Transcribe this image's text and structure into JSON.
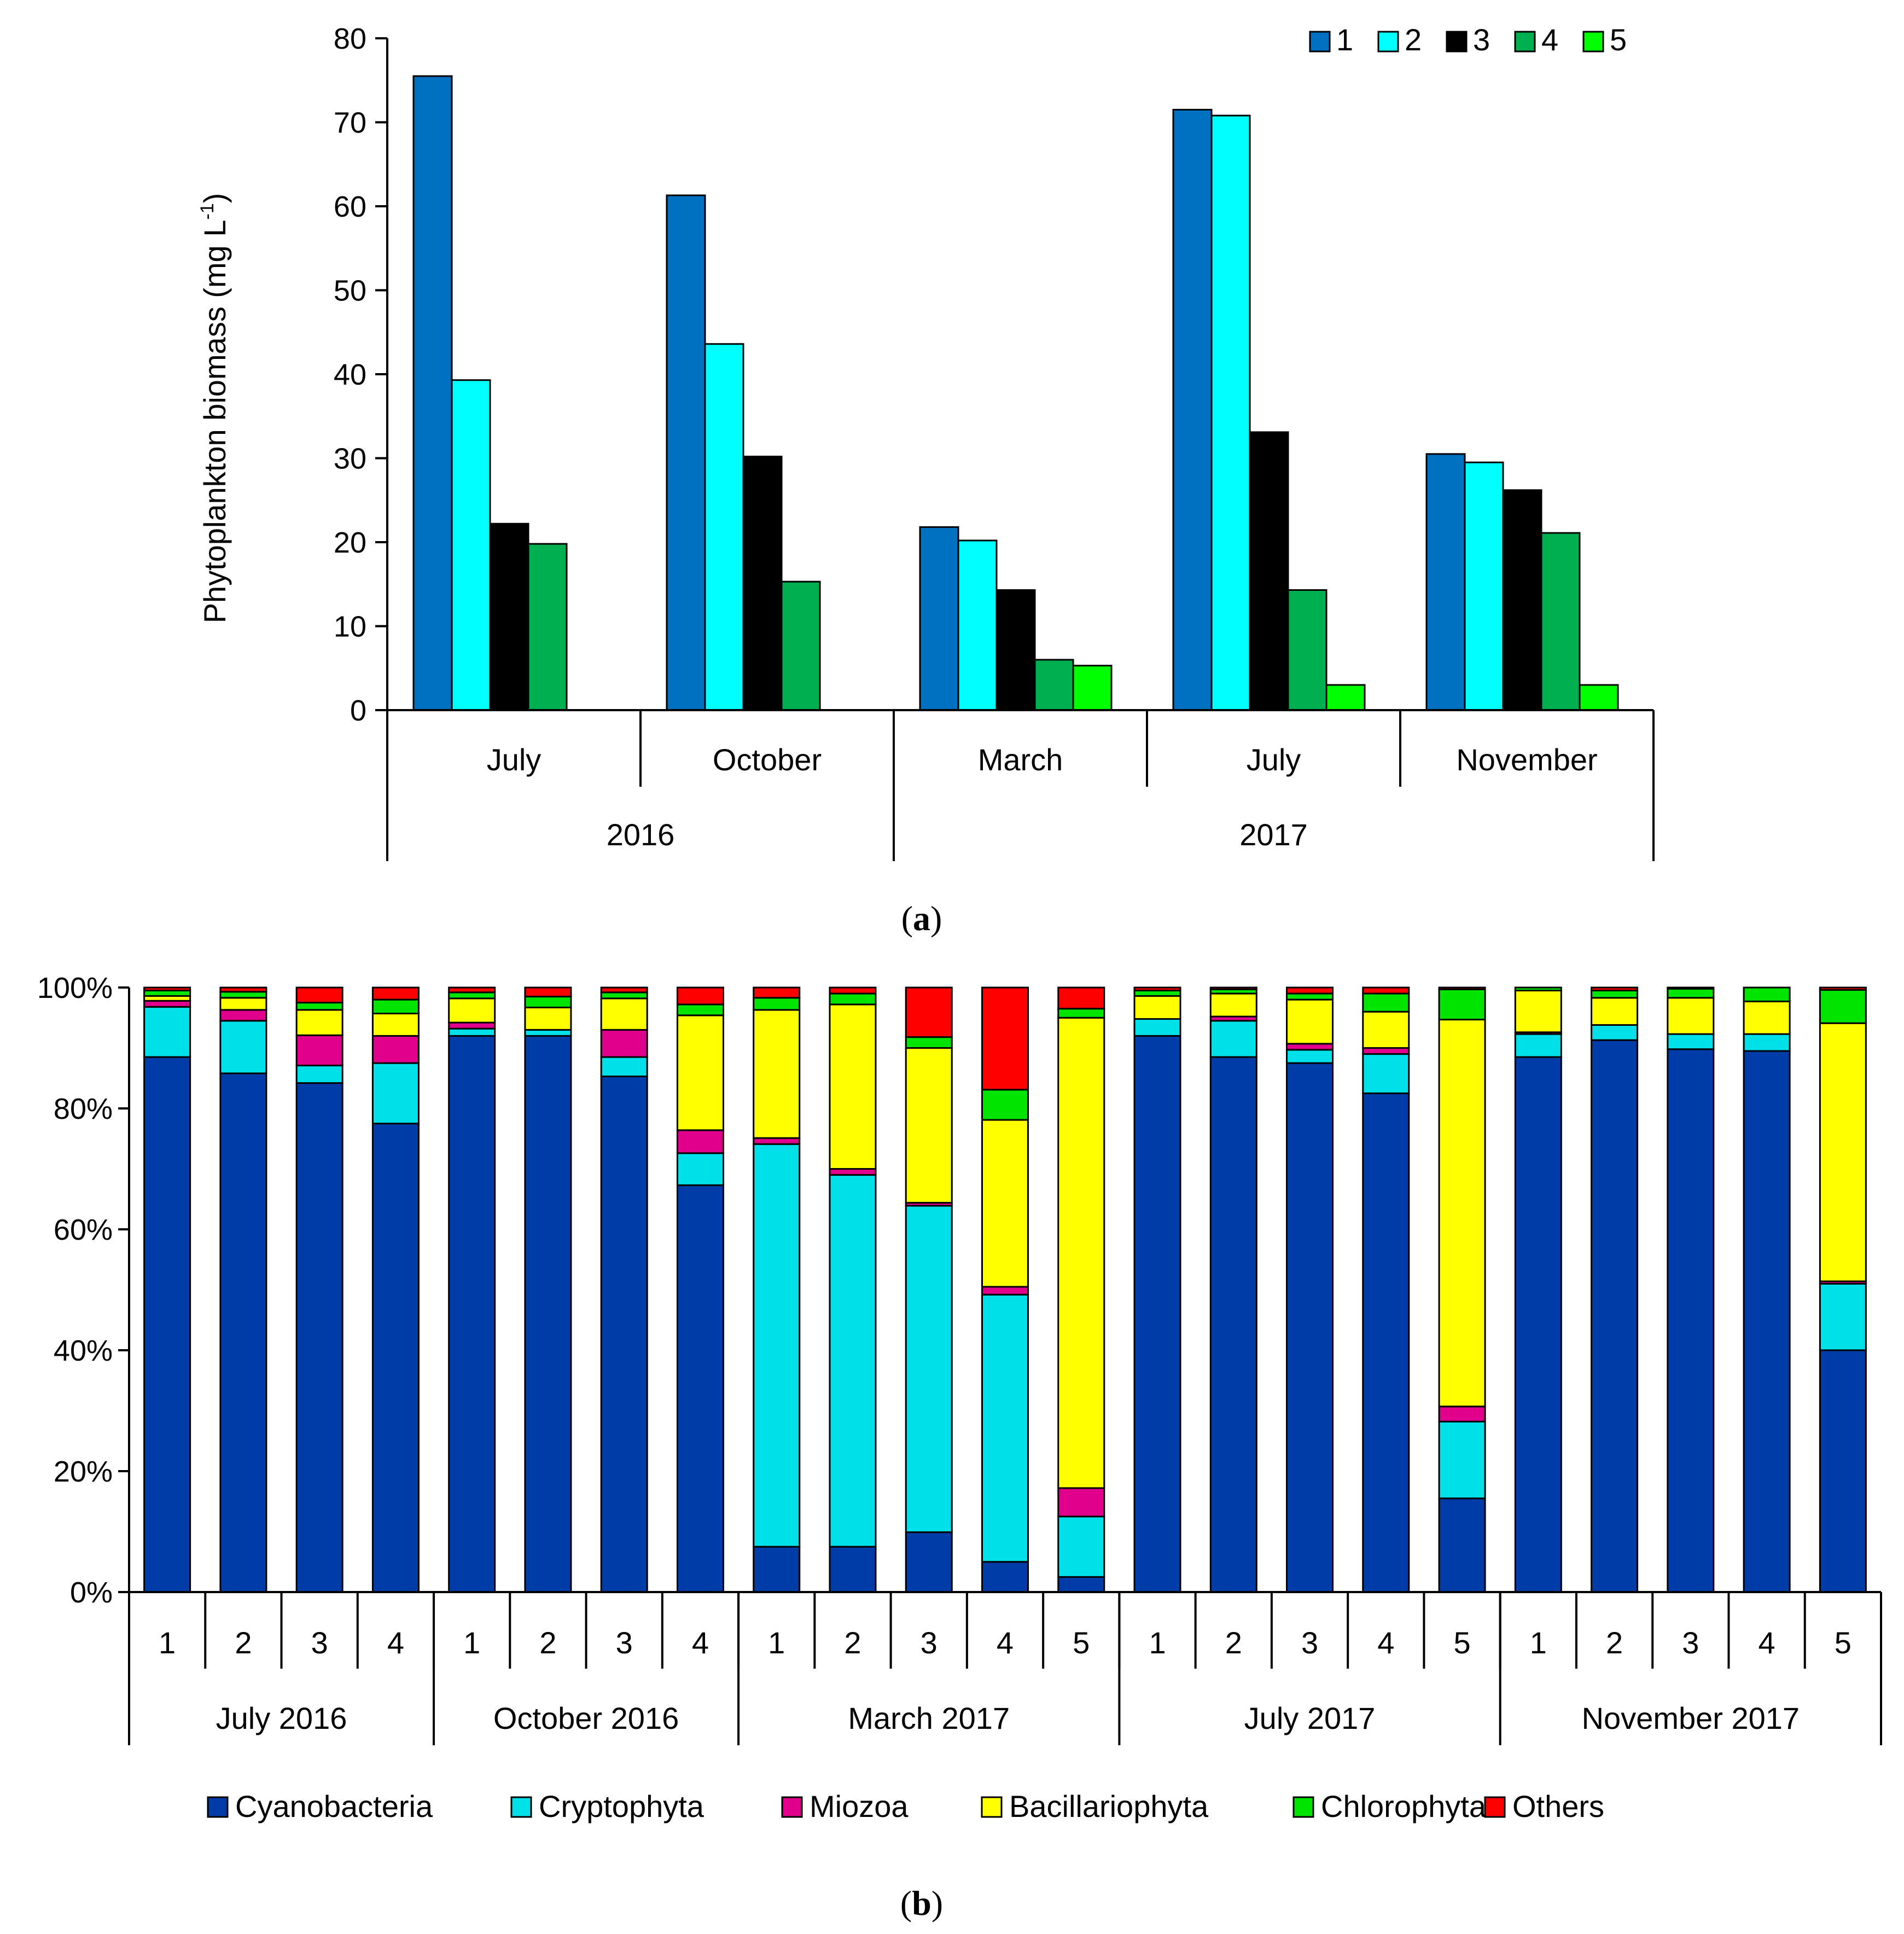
{
  "chart_data": [
    {
      "id": "a",
      "type": "bar",
      "caption": "a",
      "ylabel": "Phytoplankton biomass (mg L",
      "ylabel_sup": "-1",
      "ylabel_close": ")",
      "ylim": [
        0,
        80
      ],
      "yticks": [
        "0",
        "10",
        "20",
        "30",
        "40",
        "50",
        "60",
        "70",
        "80"
      ],
      "categories": [
        "July",
        "October",
        "March",
        "July",
        "November"
      ],
      "year_groups": [
        {
          "label": "2016",
          "span": 2
        },
        {
          "label": "2017",
          "span": 3
        }
      ],
      "series": [
        {
          "name": "1",
          "color": "#0070C0",
          "values": [
            75.5,
            61.3,
            21.8,
            71.5,
            30.5
          ]
        },
        {
          "name": "2",
          "color": "#00FFFF",
          "values": [
            39.3,
            43.6,
            20.2,
            70.8,
            29.5
          ]
        },
        {
          "name": "3",
          "color": "#000000",
          "values": [
            22.2,
            30.2,
            14.3,
            33.1,
            26.2
          ]
        },
        {
          "name": "4",
          "color": "#00B050",
          "values": [
            19.8,
            15.3,
            6.0,
            14.3,
            21.1
          ]
        },
        {
          "name": "5",
          "color": "#00FF00",
          "values": [
            null,
            null,
            5.3,
            3.0,
            3.0
          ]
        }
      ],
      "legend": {
        "position": "top-right",
        "entries": [
          "1",
          "2",
          "3",
          "4",
          "5"
        ]
      }
    },
    {
      "id": "b",
      "type": "bar",
      "stacked": "percent",
      "caption": "b",
      "yticks": [
        "0%",
        "20%",
        "40%",
        "60%",
        "80%",
        "100%"
      ],
      "ylim": [
        0,
        100
      ],
      "groups": [
        {
          "label": "July 2016",
          "stations": [
            "1",
            "2",
            "3",
            "4"
          ]
        },
        {
          "label": "October 2016",
          "stations": [
            "1",
            "2",
            "3",
            "4"
          ]
        },
        {
          "label": "March 2017",
          "stations": [
            "1",
            "2",
            "3",
            "4",
            "5"
          ]
        },
        {
          "label": "July 2017",
          "stations": [
            "1",
            "2",
            "3",
            "4",
            "5"
          ]
        },
        {
          "label": "November 2017",
          "stations": [
            "1",
            "2",
            "3",
            "4",
            "5"
          ]
        }
      ],
      "series": [
        {
          "name": "Cyanobacteria",
          "color": "#003CA8",
          "values": [
            88.5,
            85.8,
            84.2,
            77.5,
            92.0,
            92.0,
            85.3,
            67.3,
            7.5,
            7.5,
            9.9,
            5.0,
            2.5,
            92.0,
            88.5,
            87.5,
            82.5,
            15.5,
            88.5,
            91.3,
            89.8,
            89.5,
            40.0
          ]
        },
        {
          "name": "Cryptophyta",
          "color": "#00E0E8",
          "values": [
            8.3,
            8.7,
            2.9,
            10.0,
            1.2,
            1.0,
            3.2,
            5.3,
            66.6,
            61.5,
            54.0,
            44.2,
            10.0,
            2.8,
            6.0,
            2.2,
            6.5,
            12.7,
            3.8,
            2.5,
            2.5,
            2.8,
            11.0
          ]
        },
        {
          "name": "Miozoa",
          "color": "#E0008C",
          "values": [
            1.0,
            1.8,
            5.0,
            4.5,
            1.0,
            0.0,
            4.5,
            3.8,
            1.0,
            1.0,
            0.5,
            1.3,
            4.7,
            0.0,
            0.7,
            1.0,
            1.0,
            2.5,
            0.3,
            0.0,
            0.0,
            0.0,
            0.4
          ]
        },
        {
          "name": "Bacillariophyta",
          "color": "#FFFF00",
          "values": [
            0.8,
            2.0,
            4.2,
            3.7,
            4.0,
            3.7,
            5.2,
            19.0,
            21.2,
            27.2,
            25.6,
            27.6,
            77.8,
            3.8,
            3.8,
            7.3,
            6.0,
            64.0,
            6.9,
            4.5,
            6.0,
            5.4,
            42.7
          ]
        },
        {
          "name": "Chlorophyta",
          "color": "#00E400",
          "values": [
            0.9,
            1.0,
            1.2,
            2.3,
            1.0,
            1.8,
            1.0,
            1.8,
            2.0,
            1.8,
            1.8,
            5.0,
            1.5,
            0.9,
            0.7,
            1.0,
            3.0,
            5.0,
            0.5,
            1.2,
            1.5,
            2.3,
            5.5
          ]
        },
        {
          "name": "Others",
          "color": "#FF0000",
          "values": [
            0.5,
            0.7,
            2.5,
            2.0,
            0.8,
            1.5,
            0.8,
            2.8,
            1.7,
            1.0,
            8.2,
            16.9,
            3.5,
            0.5,
            0.3,
            1.0,
            1.0,
            0.3,
            0.0,
            0.5,
            0.2,
            0.0,
            0.4
          ]
        }
      ],
      "legend": {
        "position": "bottom",
        "entries": [
          "Cyanobacteria",
          "Cryptophyta",
          "Miozoa",
          "Bacillariophyta",
          "Chlorophyta",
          "Others"
        ]
      }
    }
  ]
}
